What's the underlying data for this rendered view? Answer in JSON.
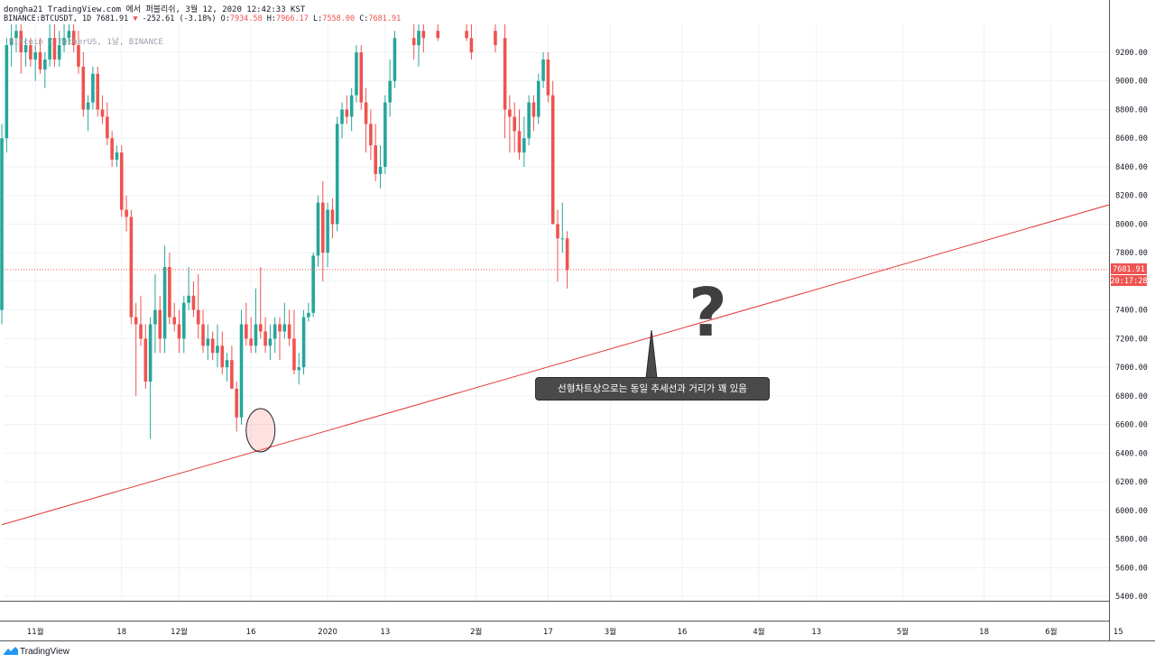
{
  "header": {
    "line1": "dongha21 TradingView.com 에서 퍼블리쉬, 3월 12, 2020 12:42:33 KST",
    "symbol": "BINANCE:BTCUSDT, 1D",
    "last": "7681.91",
    "arrow": "▼",
    "change": "-252.61 (-3.18%)",
    "o_label": "O:",
    "o": "7934.58",
    "h_label": "H:",
    "h": "7966.17",
    "l_label": "L:",
    "l": "7558.00",
    "c_label": "C:",
    "c": "7681.91"
  },
  "watermark": "Bitcoin / TetherUS, 1날, BINANCE",
  "price_label": "7681.91",
  "countdown_label": "20:17:28",
  "annotation": {
    "callout": "선형차트상으로는 동일 추세선과 거리가 꽤 있음",
    "question": "?"
  },
  "branding": "TradingView",
  "colors": {
    "up": "#26a69a",
    "down": "#ef5350",
    "trendline": "#e53935",
    "grid": "#eef1f5",
    "price_line": "#ef5350"
  },
  "chart_data": {
    "type": "candlestick",
    "symbol": "BTCUSDT",
    "interval": "1D",
    "y_range": [
      5300,
      9400
    ],
    "y_ticks": [
      5400,
      5600,
      5800,
      6000,
      6200,
      6400,
      6600,
      6800,
      7000,
      7200,
      7400,
      7600,
      7800,
      8000,
      8200,
      8400,
      8600,
      8800,
      9000,
      9200
    ],
    "x_ticks": [
      {
        "label": "11월",
        "day": 0
      },
      {
        "label": "18",
        "day": 18
      },
      {
        "label": "12월",
        "day": 30
      },
      {
        "label": "16",
        "day": 45
      },
      {
        "label": "2020",
        "day": 61
      },
      {
        "label": "13",
        "day": 73
      },
      {
        "label": "2월",
        "day": 92
      },
      {
        "label": "17",
        "day": 107
      },
      {
        "label": "3월",
        "day": 120
      },
      {
        "label": "16",
        "day": 135
      },
      {
        "label": "4월",
        "day": 151
      },
      {
        "label": "13",
        "day": 163
      },
      {
        "label": "5월",
        "day": 181
      },
      {
        "label": "18",
        "day": 198
      },
      {
        "label": "6월",
        "day": 212
      },
      {
        "label": "15",
        "day": 226
      }
    ],
    "last_price": 7681.91,
    "trendline": {
      "from": {
        "day": -7,
        "price": 5900
      },
      "to": {
        "day": 236,
        "price": 8250
      }
    },
    "highlight": {
      "day": 47,
      "price": 6560
    },
    "candles": [
      [
        -7,
        7400,
        8700,
        7300,
        8600
      ],
      [
        -6,
        8600,
        9300,
        8500,
        9250
      ],
      [
        -5,
        9250,
        9400,
        9100,
        9300
      ],
      [
        -4,
        9300,
        9400,
        9200,
        9350
      ],
      [
        -3,
        9350,
        9400,
        9050,
        9200
      ],
      [
        -2,
        9200,
        9300,
        9100,
        9250
      ],
      [
        -1,
        9250,
        9300,
        9100,
        9150
      ],
      [
        0,
        9150,
        9250,
        9000,
        9200
      ],
      [
        1,
        9200,
        9300,
        9050,
        9080
      ],
      [
        2,
        9080,
        9200,
        8950,
        9150
      ],
      [
        3,
        9150,
        9400,
        9100,
        9300
      ],
      [
        4,
        9300,
        9400,
        9100,
        9150
      ],
      [
        5,
        9150,
        9350,
        9100,
        9250
      ],
      [
        6,
        9250,
        9400,
        9200,
        9300
      ],
      [
        7,
        9300,
        9400,
        9250,
        9350
      ],
      [
        8,
        9350,
        9400,
        9200,
        9250
      ],
      [
        9,
        9250,
        9350,
        9050,
        9100
      ],
      [
        10,
        9100,
        9200,
        8750,
        8800
      ],
      [
        11,
        8800,
        8900,
        8650,
        8850
      ],
      [
        12,
        8850,
        9100,
        8800,
        9050
      ],
      [
        13,
        9050,
        9100,
        8750,
        8800
      ],
      [
        14,
        8800,
        8900,
        8700,
        8750
      ],
      [
        15,
        8750,
        8850,
        8550,
        8600
      ],
      [
        16,
        8600,
        8650,
        8400,
        8450
      ],
      [
        17,
        8450,
        8550,
        8400,
        8500
      ],
      [
        18,
        8500,
        8550,
        8050,
        8100
      ],
      [
        19,
        8100,
        8200,
        7950,
        8050
      ],
      [
        20,
        8050,
        8100,
        7300,
        7350
      ],
      [
        21,
        7350,
        7450,
        6800,
        7300
      ],
      [
        22,
        7300,
        7500,
        7150,
        7200
      ],
      [
        23,
        7200,
        7300,
        6850,
        6900
      ],
      [
        24,
        6900,
        7350,
        6500,
        7300
      ],
      [
        25,
        7300,
        7650,
        7100,
        7400
      ],
      [
        26,
        7400,
        7500,
        7100,
        7200
      ],
      [
        27,
        7200,
        7850,
        7100,
        7700
      ],
      [
        28,
        7700,
        7800,
        7300,
        7350
      ],
      [
        29,
        7350,
        7450,
        7250,
        7300
      ],
      [
        30,
        7300,
        7400,
        7100,
        7200
      ],
      [
        31,
        7200,
        7500,
        7100,
        7450
      ],
      [
        32,
        7450,
        7700,
        7400,
        7500
      ],
      [
        33,
        7500,
        7600,
        7350,
        7400
      ],
      [
        34,
        7400,
        7650,
        7200,
        7300
      ],
      [
        35,
        7300,
        7400,
        7100,
        7150
      ],
      [
        36,
        7150,
        7300,
        7050,
        7200
      ],
      [
        37,
        7200,
        7250,
        7050,
        7100
      ],
      [
        38,
        7100,
        7300,
        7000,
        7150
      ],
      [
        39,
        7150,
        7250,
        6950,
        7000
      ],
      [
        40,
        7000,
        7100,
        6900,
        7050
      ],
      [
        41,
        7050,
        7150,
        6850,
        6850
      ],
      [
        42,
        6850,
        6900,
        6550,
        6650
      ],
      [
        43,
        6650,
        7400,
        6600,
        7300
      ],
      [
        44,
        7300,
        7450,
        7150,
        7200
      ],
      [
        45,
        7200,
        7350,
        7100,
        7150
      ],
      [
        46,
        7150,
        7550,
        7100,
        7300
      ],
      [
        47,
        7300,
        7700,
        7200,
        7250
      ],
      [
        48,
        7250,
        7350,
        7100,
        7150
      ],
      [
        49,
        7150,
        7300,
        7050,
        7200
      ],
      [
        50,
        7200,
        7350,
        7100,
        7300
      ],
      [
        51,
        7300,
        7350,
        7050,
        7250
      ],
      [
        52,
        7250,
        7450,
        7200,
        7300
      ],
      [
        53,
        7300,
        7400,
        7150,
        7200
      ],
      [
        54,
        7200,
        7400,
        6950,
        6980
      ],
      [
        55,
        6980,
        7100,
        6880,
        7000
      ],
      [
        56,
        7000,
        7400,
        6950,
        7350
      ],
      [
        57,
        7350,
        7450,
        7320,
        7380
      ],
      [
        58,
        7380,
        7800,
        7350,
        7780
      ],
      [
        59,
        7780,
        8200,
        7700,
        8150
      ],
      [
        60,
        8150,
        8300,
        7600,
        7800
      ],
      [
        61,
        7800,
        8150,
        7700,
        8100
      ],
      [
        62,
        8100,
        8180,
        7900,
        8000
      ],
      [
        63,
        8000,
        8750,
        7950,
        8700
      ],
      [
        64,
        8700,
        8850,
        8600,
        8800
      ],
      [
        65,
        8800,
        8900,
        8700,
        8750
      ],
      [
        66,
        8750,
        8950,
        8650,
        8900
      ],
      [
        67,
        8900,
        9250,
        8850,
        9200
      ],
      [
        68,
        9200,
        9250,
        8800,
        8850
      ],
      [
        69,
        8850,
        8950,
        8500,
        8700
      ],
      [
        70,
        8700,
        8800,
        8450,
        8550
      ],
      [
        71,
        8550,
        8700,
        8300,
        8350
      ],
      [
        72,
        8350,
        8550,
        8250,
        8400
      ],
      [
        73,
        8400,
        8900,
        8350,
        8850
      ],
      [
        74,
        8850,
        9150,
        8750,
        9000
      ],
      [
        75,
        9000,
        9350,
        8950,
        9300
      ]
    ],
    "candles_right": [
      [
        79,
        9300,
        9400,
        9150,
        9250
      ],
      [
        80,
        9250,
        9400,
        9100,
        9350
      ],
      [
        81,
        9350,
        9400,
        9200,
        9300
      ],
      [
        84,
        9350,
        9400,
        9280,
        9300
      ],
      [
        90,
        9350,
        9450,
        9280,
        9300
      ],
      [
        91,
        9300,
        9400,
        9150,
        9200
      ],
      [
        96,
        9350,
        9400,
        9200,
        9250
      ],
      [
        98,
        9300,
        9400,
        8600,
        8800
      ],
      [
        99,
        8800,
        8900,
        8500,
        8750
      ],
      [
        100,
        8750,
        8850,
        8500,
        8650
      ],
      [
        101,
        8650,
        8800,
        8450,
        8500
      ],
      [
        102,
        8500,
        8750,
        8400,
        8600
      ],
      [
        103,
        8600,
        8900,
        8550,
        8850
      ],
      [
        104,
        8850,
        8900,
        8650,
        8750
      ],
      [
        105,
        8750,
        9050,
        8700,
        9000
      ],
      [
        106,
        9000,
        9200,
        8950,
        9150
      ],
      [
        107,
        9150,
        9200,
        8850,
        8900
      ],
      [
        108,
        8900,
        9000,
        8000,
        8000
      ],
      [
        109,
        8000,
        8100,
        7600,
        7900
      ],
      [
        110,
        7900,
        8150,
        7800,
        7900
      ],
      [
        111,
        7900,
        7950,
        7550,
        7680
      ]
    ]
  }
}
